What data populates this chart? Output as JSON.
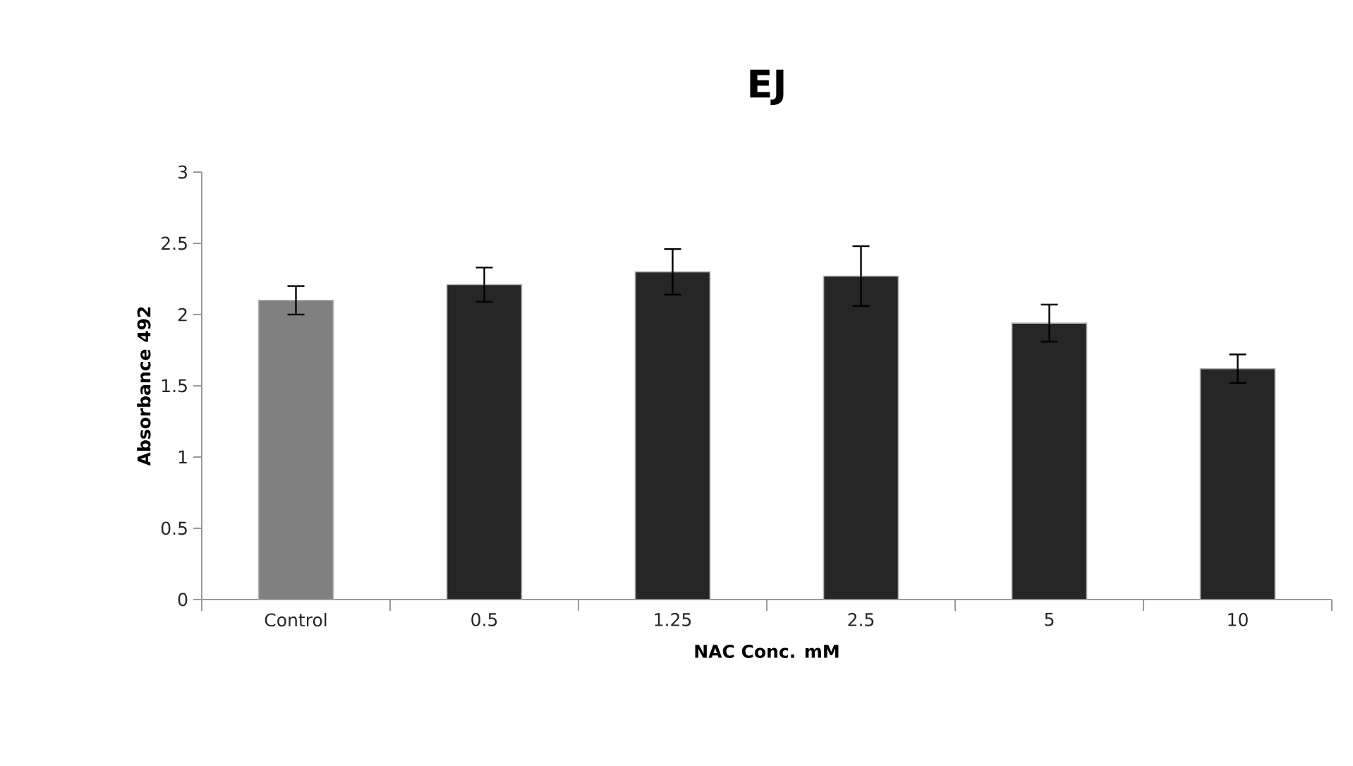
{
  "chart_data": {
    "type": "bar",
    "title": "EJ",
    "xlabel": "NAC Conc. mM",
    "ylabel": "Absorbance 492",
    "categories": [
      "Control",
      "0.5",
      "1.25",
      "2.5",
      "5",
      "10"
    ],
    "values": [
      2.1,
      2.21,
      2.3,
      2.27,
      1.94,
      1.62
    ],
    "errors": [
      0.1,
      0.12,
      0.16,
      0.21,
      0.13,
      0.1
    ],
    "colors": [
      "#808080",
      "#262626",
      "#262626",
      "#262626",
      "#262626",
      "#262626"
    ],
    "ylim": [
      0,
      3
    ],
    "yticks": [
      0,
      0.5,
      1,
      1.5,
      2,
      2.5,
      3
    ],
    "grid": false
  }
}
